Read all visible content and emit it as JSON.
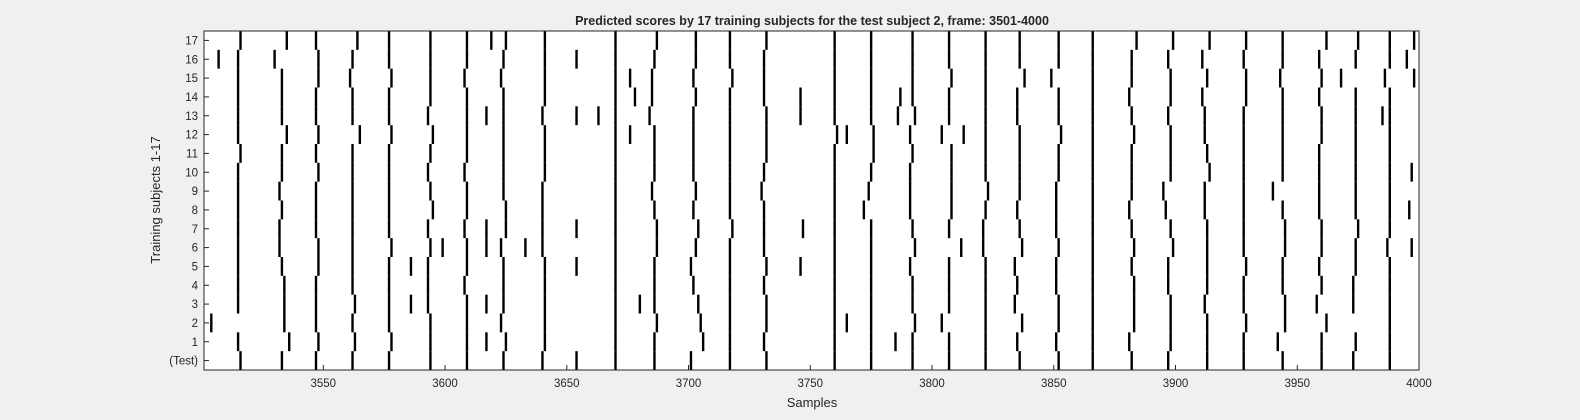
{
  "chart_data": {
    "type": "raster",
    "title": "Predicted scores by 17 training subjects for the test subject 2, frame: 3501-4000",
    "xlabel": "Samples",
    "ylabel": "Training subjects 1-17",
    "xlim": [
      3501,
      4000
    ],
    "xticks": [
      3550,
      3600,
      3650,
      3700,
      3750,
      3800,
      3850,
      3900,
      3950,
      4000
    ],
    "rows": [
      "(Test)",
      "1",
      "2",
      "3",
      "4",
      "5",
      "6",
      "7",
      "8",
      "9",
      "10",
      "11",
      "12",
      "13",
      "14",
      "15",
      "16",
      "17"
    ],
    "spikes": [
      {
        "row": "(Test)",
        "x": [
          3516,
          3533,
          3547,
          3562,
          3577,
          3594,
          3609,
          3624,
          3640,
          3654,
          3670,
          3686,
          3701,
          3717,
          3732,
          3760,
          3775,
          3792,
          3807,
          3822,
          3836,
          3852,
          3866,
          3882,
          3897,
          3913,
          3928,
          3944,
          3960,
          3973,
          3988
        ]
      },
      {
        "row": "1",
        "x": [
          3515,
          3536,
          3548,
          3563,
          3578,
          3594,
          3609,
          3617,
          3625,
          3641,
          3670,
          3686,
          3706,
          3717,
          3731,
          3760,
          3775,
          3785,
          3792,
          3807,
          3822,
          3835,
          3851,
          3866,
          3881,
          3898,
          3913,
          3928,
          3942,
          3960,
          3974,
          3988
        ]
      },
      {
        "row": "2",
        "x": [
          3504,
          3534,
          3547,
          3562,
          3577,
          3594,
          3609,
          3623,
          3641,
          3670,
          3687,
          3705,
          3717,
          3732,
          3760,
          3765,
          3775,
          3793,
          3804,
          3822,
          3837,
          3852,
          3866,
          3883,
          3898,
          3913,
          3929,
          3945,
          3962,
          3988
        ]
      },
      {
        "row": "3",
        "x": [
          3515,
          3534,
          3547,
          3563,
          3577,
          3586,
          3593,
          3609,
          3617,
          3624,
          3641,
          3670,
          3680,
          3686,
          3704,
          3717,
          3732,
          3760,
          3775,
          3792,
          3807,
          3822,
          3834,
          3852,
          3866,
          3883,
          3898,
          3912,
          3928,
          3945,
          3958,
          3973,
          3988
        ]
      },
      {
        "row": "4",
        "x": [
          3515,
          3534,
          3547,
          3562,
          3577,
          3593,
          3608,
          3624,
          3641,
          3670,
          3686,
          3702,
          3717,
          3731,
          3760,
          3775,
          3792,
          3807,
          3822,
          3835,
          3851,
          3866,
          3883,
          3897,
          3913,
          3928,
          3944,
          3960,
          3973,
          3988
        ]
      },
      {
        "row": "5",
        "x": [
          3515,
          3533,
          3548,
          3562,
          3577,
          3586,
          3593,
          3609,
          3624,
          3641,
          3654,
          3670,
          3686,
          3701,
          3717,
          3732,
          3746,
          3760,
          3775,
          3791,
          3807,
          3822,
          3834,
          3851,
          3866,
          3882,
          3897,
          3913,
          3929,
          3944,
          3959,
          3974,
          3988
        ]
      },
      {
        "row": "6",
        "x": [
          3515,
          3532,
          3548,
          3562,
          3578,
          3594,
          3599,
          3609,
          3617,
          3623,
          3633,
          3640,
          3670,
          3687,
          3703,
          3717,
          3731,
          3760,
          3775,
          3793,
          3812,
          3821,
          3837,
          3852,
          3866,
          3883,
          3899,
          3913,
          3928,
          3945,
          3960,
          3974,
          3987,
          3997
        ]
      },
      {
        "row": "7",
        "x": [
          3515,
          3532,
          3547,
          3562,
          3577,
          3593,
          3608,
          3617,
          3625,
          3640,
          3654,
          3670,
          3687,
          3704,
          3718,
          3731,
          3747,
          3760,
          3775,
          3792,
          3807,
          3821,
          3836,
          3851,
          3866,
          3882,
          3898,
          3913,
          3928,
          3945,
          3960,
          3975,
          3988
        ]
      },
      {
        "row": "8",
        "x": [
          3515,
          3533,
          3547,
          3562,
          3577,
          3595,
          3609,
          3625,
          3640,
          3670,
          3686,
          3702,
          3717,
          3731,
          3760,
          3772,
          3791,
          3808,
          3822,
          3835,
          3851,
          3866,
          3881,
          3896,
          3912,
          3928,
          3944,
          3959,
          3974,
          3988,
          3996
        ]
      },
      {
        "row": "9",
        "x": [
          3515,
          3532,
          3547,
          3562,
          3577,
          3594,
          3609,
          3624,
          3640,
          3670,
          3685,
          3703,
          3717,
          3730,
          3760,
          3774,
          3791,
          3808,
          3823,
          3836,
          3851,
          3866,
          3882,
          3895,
          3912,
          3928,
          3940,
          3959,
          3974,
          3988
        ]
      },
      {
        "row": "10",
        "x": [
          3515,
          3533,
          3548,
          3562,
          3577,
          3593,
          3608,
          3624,
          3641,
          3670,
          3686,
          3702,
          3717,
          3731,
          3760,
          3775,
          3791,
          3808,
          3822,
          3836,
          3852,
          3866,
          3882,
          3898,
          3914,
          3928,
          3944,
          3959,
          3974,
          3988,
          3997
        ]
      },
      {
        "row": "11",
        "x": [
          3516,
          3533,
          3547,
          3562,
          3577,
          3594,
          3609,
          3624,
          3641,
          3670,
          3686,
          3702,
          3717,
          3732,
          3760,
          3776,
          3792,
          3808,
          3822,
          3836,
          3852,
          3866,
          3882,
          3898,
          3913,
          3928,
          3944,
          3959,
          3974,
          3988
        ]
      },
      {
        "row": "12",
        "x": [
          3515,
          3535,
          3548,
          3565,
          3578,
          3595,
          3609,
          3624,
          3641,
          3670,
          3676,
          3686,
          3702,
          3717,
          3732,
          3761,
          3765,
          3776,
          3791,
          3804,
          3813,
          3822,
          3836,
          3853,
          3866,
          3883,
          3898,
          3912,
          3928,
          3944,
          3960,
          3974,
          3988
        ]
      },
      {
        "row": "13",
        "x": [
          3515,
          3533,
          3547,
          3562,
          3577,
          3593,
          3609,
          3617,
          3624,
          3640,
          3654,
          3663,
          3670,
          3684,
          3702,
          3717,
          3732,
          3746,
          3760,
          3775,
          3786,
          3793,
          3807,
          3822,
          3835,
          3852,
          3866,
          3882,
          3897,
          3912,
          3928,
          3944,
          3960,
          3974,
          3985,
          3988
        ]
      },
      {
        "row": "14",
        "x": [
          3515,
          3533,
          3547,
          3562,
          3577,
          3594,
          3609,
          3624,
          3641,
          3670,
          3678,
          3685,
          3703,
          3717,
          3731,
          3746,
          3760,
          3775,
          3787,
          3792,
          3807,
          3822,
          3835,
          3852,
          3866,
          3881,
          3898,
          3911,
          3929,
          3944,
          3959,
          3974,
          3988
        ]
      },
      {
        "row": "15",
        "x": [
          3515,
          3533,
          3548,
          3561,
          3578,
          3594,
          3608,
          3623,
          3641,
          3670,
          3676,
          3685,
          3702,
          3718,
          3731,
          3760,
          3775,
          3792,
          3808,
          3822,
          3838,
          3849,
          3866,
          3882,
          3898,
          3913,
          3929,
          3943,
          3960,
          3968,
          3986,
          3998
        ]
      },
      {
        "row": "16",
        "x": [
          3507,
          3515,
          3530,
          3548,
          3562,
          3577,
          3594,
          3609,
          3624,
          3641,
          3654,
          3670,
          3686,
          3703,
          3717,
          3731,
          3760,
          3775,
          3792,
          3807,
          3822,
          3836,
          3852,
          3866,
          3882,
          3897,
          3911,
          3928,
          3944,
          3959,
          3974,
          3988,
          3995
        ]
      },
      {
        "row": "17",
        "x": [
          3516,
          3535,
          3547,
          3564,
          3577,
          3594,
          3609,
          3619,
          3625,
          3641,
          3670,
          3687,
          3703,
          3717,
          3732,
          3760,
          3775,
          3792,
          3807,
          3822,
          3836,
          3852,
          3866,
          3884,
          3899,
          3914,
          3929,
          3944,
          3962,
          3975,
          3988,
          3998
        ]
      }
    ]
  }
}
